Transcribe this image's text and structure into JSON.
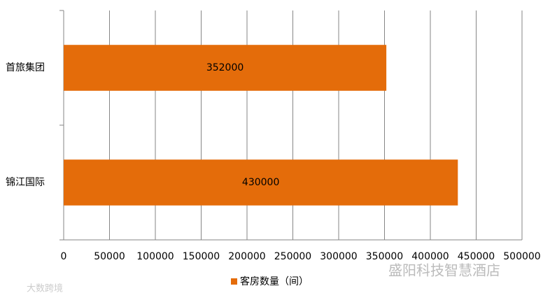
{
  "chart_data": {
    "type": "bar",
    "orientation": "horizontal",
    "categories": [
      "首旅集团",
      "锦江国际"
    ],
    "series": [
      {
        "name": "客房数量（间）",
        "color": "#e46c0a",
        "values": [
          352000,
          430000
        ]
      }
    ],
    "xlim": [
      0,
      500000
    ],
    "xticks": [
      0,
      50000,
      100000,
      150000,
      200000,
      250000,
      300000,
      350000,
      400000,
      450000,
      500000
    ],
    "grid": true,
    "legend": "bottom",
    "data_labels": true
  },
  "watermarks": [
    "盛阳科技智慧酒店",
    "大数跨境"
  ]
}
